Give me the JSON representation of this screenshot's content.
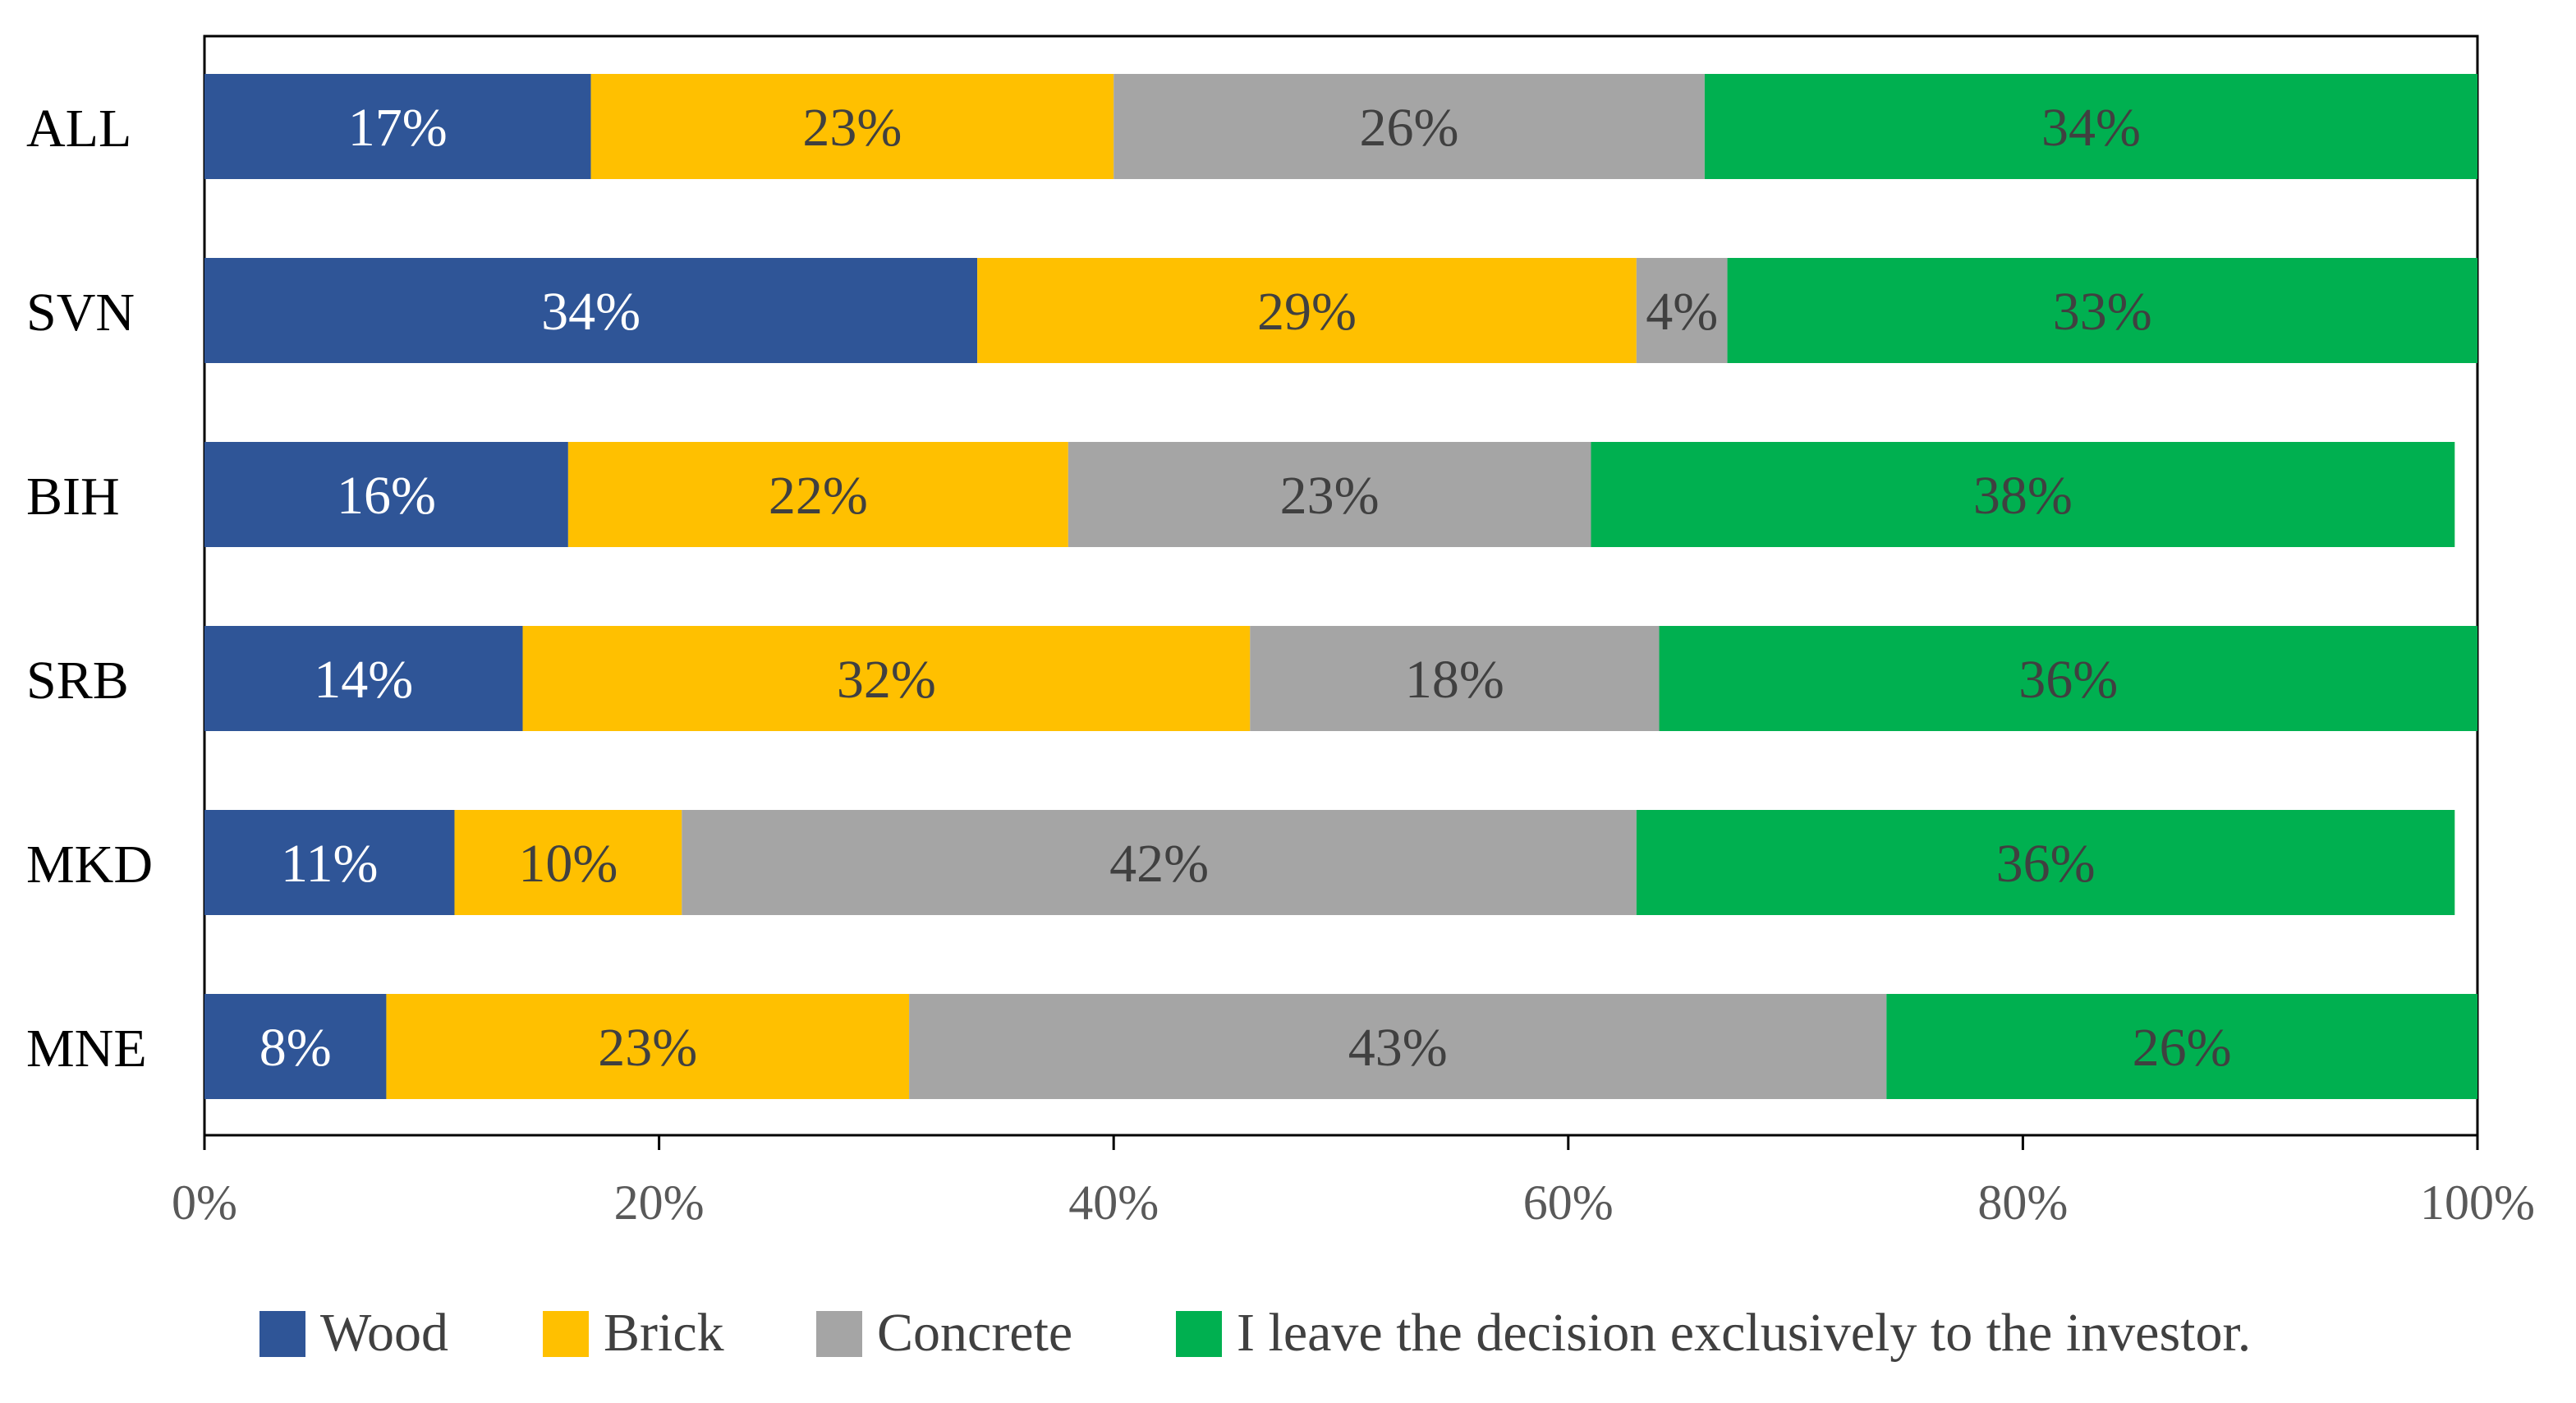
{
  "chart_data": {
    "type": "bar",
    "orientation": "horizontal",
    "stacked": "percent",
    "title": "",
    "xlabel": "",
    "ylabel": "",
    "xlim": [
      0,
      100
    ],
    "x_ticks": [
      "0%",
      "20%",
      "40%",
      "60%",
      "80%",
      "100%"
    ],
    "categories": [
      "ALL",
      "SVN",
      "BIH",
      "SRB",
      "MKD",
      "MNE"
    ],
    "series": [
      {
        "name": "Wood",
        "color": "#2F5597",
        "label_color": "#FFFFFF",
        "values": [
          17,
          34,
          16,
          14,
          11,
          8
        ],
        "labels": [
          "17%",
          "34%",
          "16%",
          "14%",
          "11%",
          "8%"
        ]
      },
      {
        "name": "Brick",
        "color": "#FFC000",
        "label_color": "#404040",
        "values": [
          23,
          29,
          22,
          32,
          10,
          23
        ],
        "labels": [
          "23%",
          "29%",
          "22%",
          "32%",
          "10%",
          "23%"
        ]
      },
      {
        "name": "Concrete",
        "color": "#A5A5A5",
        "label_color": "#404040",
        "values": [
          26,
          4,
          23,
          18,
          42,
          43
        ],
        "labels": [
          "26%",
          "4%",
          "23%",
          "18%",
          "42%",
          "43%"
        ]
      },
      {
        "name": "I leave the decision exclusively to the investor.",
        "color": "#00B050",
        "label_color": "#404040",
        "values": [
          34,
          33,
          38,
          36,
          36,
          26
        ],
        "labels": [
          "34%",
          "33%",
          "38%",
          "36%",
          "36%",
          "26%"
        ]
      }
    ],
    "legend_position": "bottom",
    "grid": false
  }
}
